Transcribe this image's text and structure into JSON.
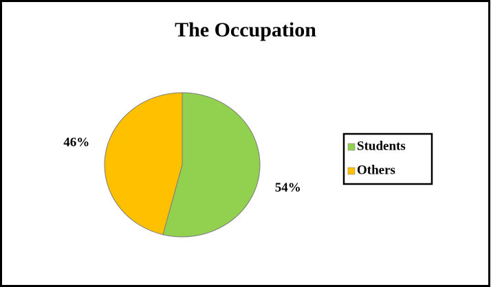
{
  "chart_data": {
    "type": "pie",
    "title": "The Occupation",
    "categories": [
      "Students",
      "Others"
    ],
    "values": [
      54,
      46
    ],
    "value_labels": [
      "54%",
      "46%"
    ],
    "colors": [
      "#92d050",
      "#ffc000"
    ],
    "legend": "right"
  }
}
